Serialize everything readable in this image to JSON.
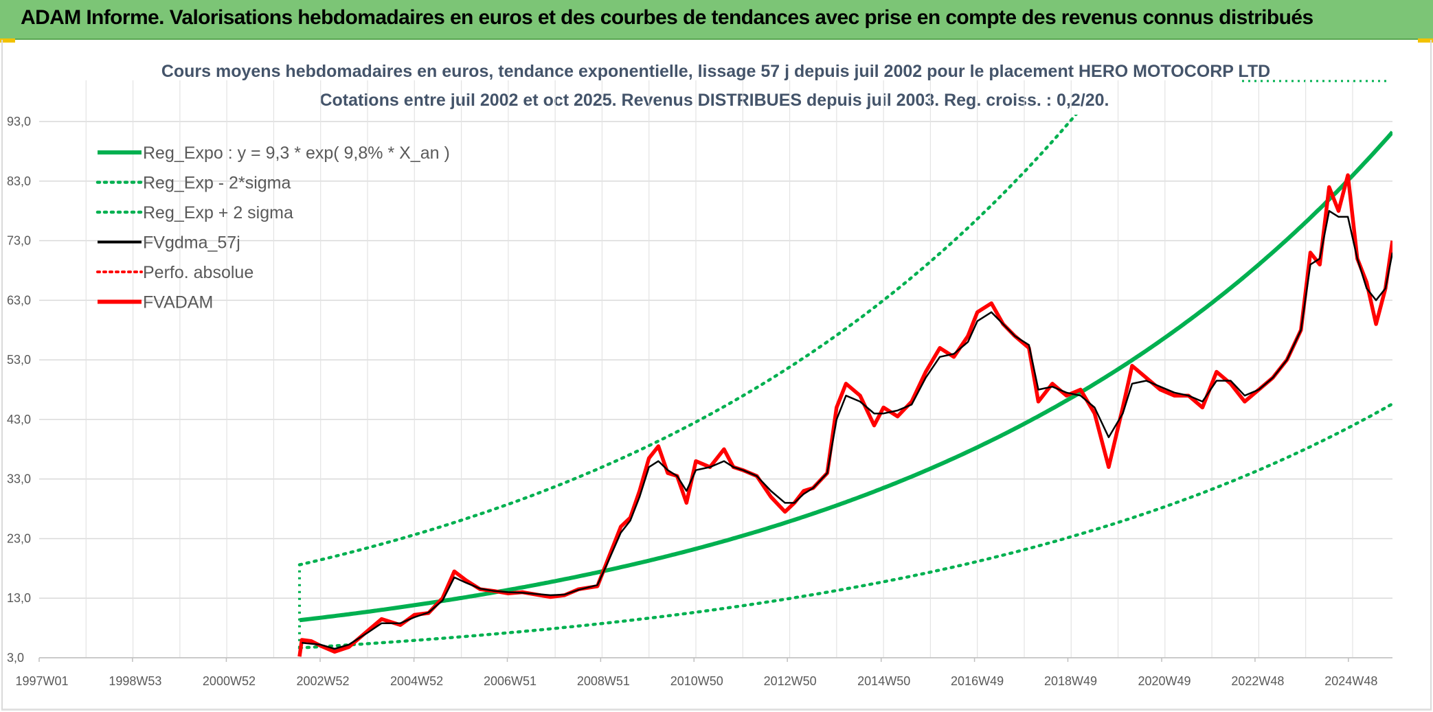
{
  "header": {
    "title": "ADAM Informe. Valorisations hebdomadaires en euros et des courbes de tendances avec prise en compte des revenus connus distribués"
  },
  "colors": {
    "header_bg": "#7cc576",
    "reg_expo": "#00b050",
    "fvgdma": "#000000",
    "fvadam": "#ff0000",
    "perfo": "#ff0000"
  },
  "chart_data": {
    "type": "line",
    "title_line1": "Cours moyens hebdomadaires en euros, tendance exponentielle, lissage 57 j depuis juil 2002 pour le placement HERO MOTOCORP LTD",
    "title_line2": "Cotations entre juil 2002 et oct 2025. Revenus DISTRIBUES depuis juil 2003. Reg. croiss. : 0,2/20.",
    "xlabel": "",
    "ylabel": "",
    "ylim": [
      3,
      93
    ],
    "yticks": [
      "3,0",
      "13,0",
      "23,0",
      "33,0",
      "43,0",
      "53,0",
      "63,0",
      "73,0",
      "83,0",
      "93,0"
    ],
    "xlim": [
      1997.0,
      2025.85
    ],
    "xticks": [
      {
        "label": "1997W01",
        "year": 1997.0
      },
      {
        "label": "1998W53",
        "year": 1998.99
      },
      {
        "label": "2000W52",
        "year": 2000.99
      },
      {
        "label": "2002W52",
        "year": 2002.99
      },
      {
        "label": "2004W52",
        "year": 2004.99
      },
      {
        "label": "2006W51",
        "year": 2006.98
      },
      {
        "label": "2008W51",
        "year": 2008.97
      },
      {
        "label": "2010W50",
        "year": 2010.96
      },
      {
        "label": "2012W50",
        "year": 2012.95
      },
      {
        "label": "2014W50",
        "year": 2014.95
      },
      {
        "label": "2016W49",
        "year": 2016.94
      },
      {
        "label": "2018W49",
        "year": 2018.93
      },
      {
        "label": "2020W49",
        "year": 2020.93
      },
      {
        "label": "2022W48",
        "year": 2022.92
      },
      {
        "label": "2024W48",
        "year": 2024.91
      }
    ],
    "grid": true,
    "legend_position": "top-left",
    "legend": [
      {
        "label": "Reg_Expo : y = 9,3 * exp( 9,8% *  X_an )",
        "style": "solid-green"
      },
      {
        "label": "Reg_Exp - 2*sigma",
        "style": "dotted-green"
      },
      {
        "label": "Reg_Exp + 2 sigma",
        "style": "dotted-green"
      },
      {
        "label": "FVgdma_57j",
        "style": "solid-black"
      },
      {
        "label": "Perfo. absolue",
        "style": "dotted-red"
      },
      {
        "label": "FVADAM",
        "style": "solid-red"
      }
    ],
    "regression": {
      "a": 9.3,
      "rate": 0.098,
      "start": 2002.55,
      "end": 2025.85,
      "lower_factor": 0.5,
      "upper_factor": 2.0
    },
    "series": [
      {
        "name": "FVADAM",
        "x": [
          2002.55,
          2002.6,
          2002.8,
          2003.0,
          2003.3,
          2003.6,
          2004.0,
          2004.3,
          2004.7,
          2005.0,
          2005.3,
          2005.6,
          2005.85,
          2006.1,
          2006.4,
          2006.7,
          2007.0,
          2007.3,
          2007.6,
          2007.9,
          2008.2,
          2008.5,
          2008.9,
          2009.1,
          2009.4,
          2009.6,
          2009.8,
          2010.0,
          2010.2,
          2010.4,
          2010.6,
          2010.8,
          2011.0,
          2011.3,
          2011.6,
          2011.8,
          2012.0,
          2012.3,
          2012.6,
          2012.9,
          2013.1,
          2013.3,
          2013.5,
          2013.8,
          2014.0,
          2014.2,
          2014.5,
          2014.8,
          2015.0,
          2015.3,
          2015.6,
          2015.9,
          2016.2,
          2016.5,
          2016.8,
          2017.0,
          2017.3,
          2017.55,
          2017.8,
          2018.1,
          2018.3,
          2018.6,
          2018.9,
          2019.2,
          2019.5,
          2019.8,
          2020.1,
          2020.3,
          2020.6,
          2020.9,
          2021.2,
          2021.5,
          2021.8,
          2022.1,
          2022.4,
          2022.7,
          2023.0,
          2023.3,
          2023.6,
          2023.9,
          2024.1,
          2024.3,
          2024.5,
          2024.7,
          2024.9,
          2025.1,
          2025.3,
          2025.5,
          2025.7,
          2025.85
        ],
        "values": [
          3.2,
          6.0,
          5.8,
          5.0,
          4.0,
          4.8,
          7.5,
          9.5,
          8.5,
          10.2,
          10.5,
          13.0,
          17.5,
          16.0,
          14.5,
          14.2,
          13.8,
          14.0,
          13.6,
          13.2,
          13.5,
          14.5,
          15.0,
          19.0,
          25.0,
          26.5,
          31.0,
          36.5,
          38.5,
          34.0,
          33.5,
          29.0,
          36.0,
          35.0,
          38.0,
          35.0,
          34.5,
          33.5,
          30.0,
          27.5,
          29.0,
          31.0,
          31.5,
          34.0,
          45.0,
          49.0,
          47.0,
          42.0,
          45.0,
          43.5,
          46.0,
          51.0,
          55.0,
          53.5,
          57.0,
          61.0,
          62.5,
          59.0,
          57.0,
          55.0,
          46.0,
          49.0,
          47.0,
          48.0,
          44.0,
          35.0,
          45.0,
          52.0,
          50.0,
          48.0,
          47.0,
          47.0,
          45.0,
          51.0,
          49.0,
          46.0,
          48.0,
          50.0,
          53.0,
          58.0,
          71.0,
          69.0,
          82.0,
          78.0,
          84.0,
          70.0,
          66.0,
          59.0,
          65.0,
          73.0
        ]
      },
      {
        "name": "FVgdma_57j",
        "x": [
          2002.6,
          2003.0,
          2003.3,
          2003.6,
          2004.0,
          2004.3,
          2004.7,
          2005.0,
          2005.3,
          2005.6,
          2005.85,
          2006.1,
          2006.4,
          2006.7,
          2007.0,
          2007.3,
          2007.6,
          2007.9,
          2008.2,
          2008.5,
          2008.9,
          2009.1,
          2009.4,
          2009.6,
          2009.8,
          2010.0,
          2010.2,
          2010.4,
          2010.6,
          2010.8,
          2011.0,
          2011.3,
          2011.6,
          2011.8,
          2012.0,
          2012.3,
          2012.6,
          2012.9,
          2013.1,
          2013.3,
          2013.5,
          2013.8,
          2014.0,
          2014.2,
          2014.5,
          2014.8,
          2015.0,
          2015.3,
          2015.6,
          2015.9,
          2016.2,
          2016.5,
          2016.8,
          2017.0,
          2017.3,
          2017.55,
          2017.8,
          2018.1,
          2018.3,
          2018.6,
          2018.9,
          2019.2,
          2019.5,
          2019.8,
          2020.1,
          2020.3,
          2020.6,
          2020.9,
          2021.2,
          2021.5,
          2021.8,
          2022.1,
          2022.4,
          2022.7,
          2023.0,
          2023.3,
          2023.6,
          2023.9,
          2024.1,
          2024.3,
          2024.5,
          2024.7,
          2024.9,
          2025.1,
          2025.3,
          2025.5,
          2025.7,
          2025.85
        ],
        "values": [
          5.5,
          5.2,
          4.5,
          5.2,
          7.2,
          8.8,
          8.8,
          9.8,
          10.6,
          12.6,
          16.5,
          15.6,
          14.6,
          14.2,
          14.0,
          13.9,
          13.7,
          13.5,
          13.6,
          14.4,
          15.2,
          18.6,
          24.0,
          26.0,
          30.0,
          35.0,
          36.0,
          34.5,
          33.5,
          31.0,
          34.5,
          35.0,
          36.0,
          35.0,
          34.5,
          33.5,
          31.0,
          29.0,
          29.0,
          30.5,
          31.5,
          34.0,
          43.0,
          47.0,
          46.0,
          44.0,
          44.0,
          44.5,
          45.5,
          50.0,
          53.5,
          54.0,
          56.0,
          59.5,
          61.0,
          59.0,
          57.0,
          55.5,
          48.0,
          48.5,
          47.5,
          47.0,
          45.0,
          40.0,
          44.0,
          49.0,
          49.5,
          48.5,
          47.5,
          47.0,
          46.0,
          49.5,
          49.5,
          47.0,
          48.0,
          50.0,
          53.0,
          58.0,
          69.0,
          70.0,
          78.0,
          77.0,
          77.0,
          70.0,
          65.0,
          63.0,
          65.0,
          71.0
        ]
      }
    ]
  }
}
